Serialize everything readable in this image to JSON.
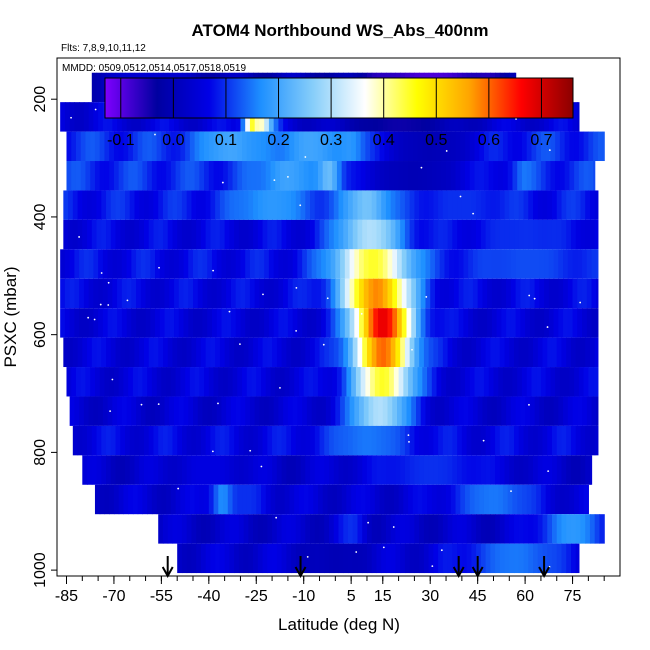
{
  "chart_data": {
    "type": "heatmap",
    "title": "ATOM4 Northbound WS_Abs_400nm",
    "flights_label": "Flts: 7,8,9,10,11,12",
    "dates_label": "MMDD: 0509,0512,0514,0517,0518,0519",
    "xlabel": "Latitude (deg N)",
    "ylabel": "PSXC (mbar)",
    "xlim": [
      -88,
      90
    ],
    "ylim": [
      1010,
      130
    ],
    "x_ticks": [
      -85,
      -70,
      -55,
      -40,
      -25,
      -10,
      5,
      15,
      30,
      45,
      60,
      75
    ],
    "y_ticks": [
      200,
      400,
      600,
      800,
      1000
    ],
    "colorbar": {
      "range": [
        -0.13,
        0.76
      ],
      "ticks": [
        -0.1,
        0.0,
        0.1,
        0.2,
        0.3,
        0.4,
        0.5,
        0.6,
        0.7
      ],
      "colors": [
        "#7f00ff",
        "#0000a0",
        "#0000e6",
        "#1e90ff",
        "#87cefa",
        "#ffffff",
        "#ffff00",
        "#ffa500",
        "#ff0000",
        "#8b0000"
      ]
    },
    "arrows_lat": [
      -53,
      -11,
      39,
      45,
      66
    ],
    "layers": [
      {
        "p": 180,
        "lat_min": -77,
        "lat_max": 57,
        "background": 0.0,
        "features": [
          {
            "lat": 30,
            "value": -0.09,
            "width": 15
          },
          {
            "lat": -60,
            "value": 0.04,
            "width": 10
          }
        ]
      },
      {
        "p": 230,
        "lat_min": -87,
        "lat_max": 77,
        "background": 0.05,
        "features": [
          {
            "lat": -26,
            "value": 0.62,
            "width": 1.5
          },
          {
            "lat": -24,
            "value": 0.4,
            "width": 3
          },
          {
            "lat": 20,
            "value": -0.04,
            "width": 15
          }
        ]
      },
      {
        "p": 280,
        "lat_min": -85,
        "lat_max": 85,
        "background": 0.1,
        "features": [
          {
            "lat": -33,
            "value": 0.2,
            "width": 8
          },
          {
            "lat": -8,
            "value": 0.2,
            "width": 8
          },
          {
            "lat": 5,
            "value": 0.2,
            "width": 4
          },
          {
            "lat": 30,
            "value": 0.0,
            "width": 12
          }
        ]
      },
      {
        "p": 330,
        "lat_min": -85,
        "lat_max": 82,
        "background": 0.1,
        "features": [
          {
            "lat": -2,
            "value": 0.3,
            "width": 3
          },
          {
            "lat": -15,
            "value": 0.2,
            "width": 7
          },
          {
            "lat": 25,
            "value": 0.0,
            "width": 14
          },
          {
            "lat": 60,
            "value": 0.15,
            "width": 2
          }
        ]
      },
      {
        "p": 380,
        "lat_min": -86,
        "lat_max": 83,
        "background": 0.08,
        "features": [
          {
            "lat": -20,
            "value": 0.18,
            "width": 10
          },
          {
            "lat": 10,
            "value": 0.25,
            "width": 6
          },
          {
            "lat": 40,
            "value": 0.1,
            "width": 10
          }
        ]
      },
      {
        "p": 430,
        "lat_min": -86,
        "lat_max": 83,
        "background": 0.06,
        "features": [
          {
            "lat": 11,
            "value": 0.3,
            "width": 8
          },
          {
            "lat": 60,
            "value": 0.1,
            "width": 12
          }
        ]
      },
      {
        "p": 480,
        "lat_min": -87,
        "lat_max": 83,
        "background": 0.07,
        "features": [
          {
            "lat": 12,
            "value": 0.45,
            "width": 9
          },
          {
            "lat": 60,
            "value": 0.12,
            "width": 15
          }
        ]
      },
      {
        "p": 530,
        "lat_min": -87,
        "lat_max": 83,
        "background": 0.06,
        "features": [
          {
            "lat": 13,
            "value": 0.58,
            "width": 8
          }
        ]
      },
      {
        "p": 580,
        "lat_min": -87,
        "lat_max": 83,
        "background": 0.05,
        "features": [
          {
            "lat": 15,
            "value": 0.68,
            "width": 7
          }
        ]
      },
      {
        "p": 630,
        "lat_min": -86,
        "lat_max": 83,
        "background": 0.05,
        "features": [
          {
            "lat": 15,
            "value": 0.6,
            "width": 7
          }
        ]
      },
      {
        "p": 680,
        "lat_min": -85,
        "lat_max": 83,
        "background": 0.05,
        "features": [
          {
            "lat": 15,
            "value": 0.45,
            "width": 7
          }
        ]
      },
      {
        "p": 730,
        "lat_min": -84,
        "lat_max": 83,
        "background": 0.04,
        "features": [
          {
            "lat": 14,
            "value": 0.3,
            "width": 7
          }
        ]
      },
      {
        "p": 780,
        "lat_min": -83,
        "lat_max": 83,
        "background": 0.06,
        "features": [
          {
            "lat": 10,
            "value": 0.15,
            "width": 10
          }
        ]
      },
      {
        "p": 830,
        "lat_min": -80,
        "lat_max": 81,
        "background": 0.03,
        "features": [
          {
            "lat": 30,
            "value": 0.1,
            "width": 15
          },
          {
            "lat": -40,
            "value": 0.06,
            "width": 8
          }
        ]
      },
      {
        "p": 880,
        "lat_min": -76,
        "lat_max": 80,
        "background": 0.04,
        "features": [
          {
            "lat": -35,
            "value": 0.2,
            "width": 3
          },
          {
            "lat": -28,
            "value": 0.1,
            "width": 5
          },
          {
            "lat": 50,
            "value": 0.15,
            "width": 10
          }
        ]
      },
      {
        "p": 930,
        "lat_min": -56,
        "lat_max": 85,
        "background": 0.03,
        "features": [
          {
            "lat": 75,
            "value": 0.18,
            "width": 8
          },
          {
            "lat": 5,
            "value": 0.1,
            "width": 3
          }
        ]
      },
      {
        "p": 980,
        "lat_min": -50,
        "lat_max": 77,
        "background": 0.04,
        "features": [
          {
            "lat": 57,
            "value": 0.15,
            "width": 12
          },
          {
            "lat": 0,
            "value": 0.0,
            "width": 8
          }
        ]
      }
    ]
  }
}
